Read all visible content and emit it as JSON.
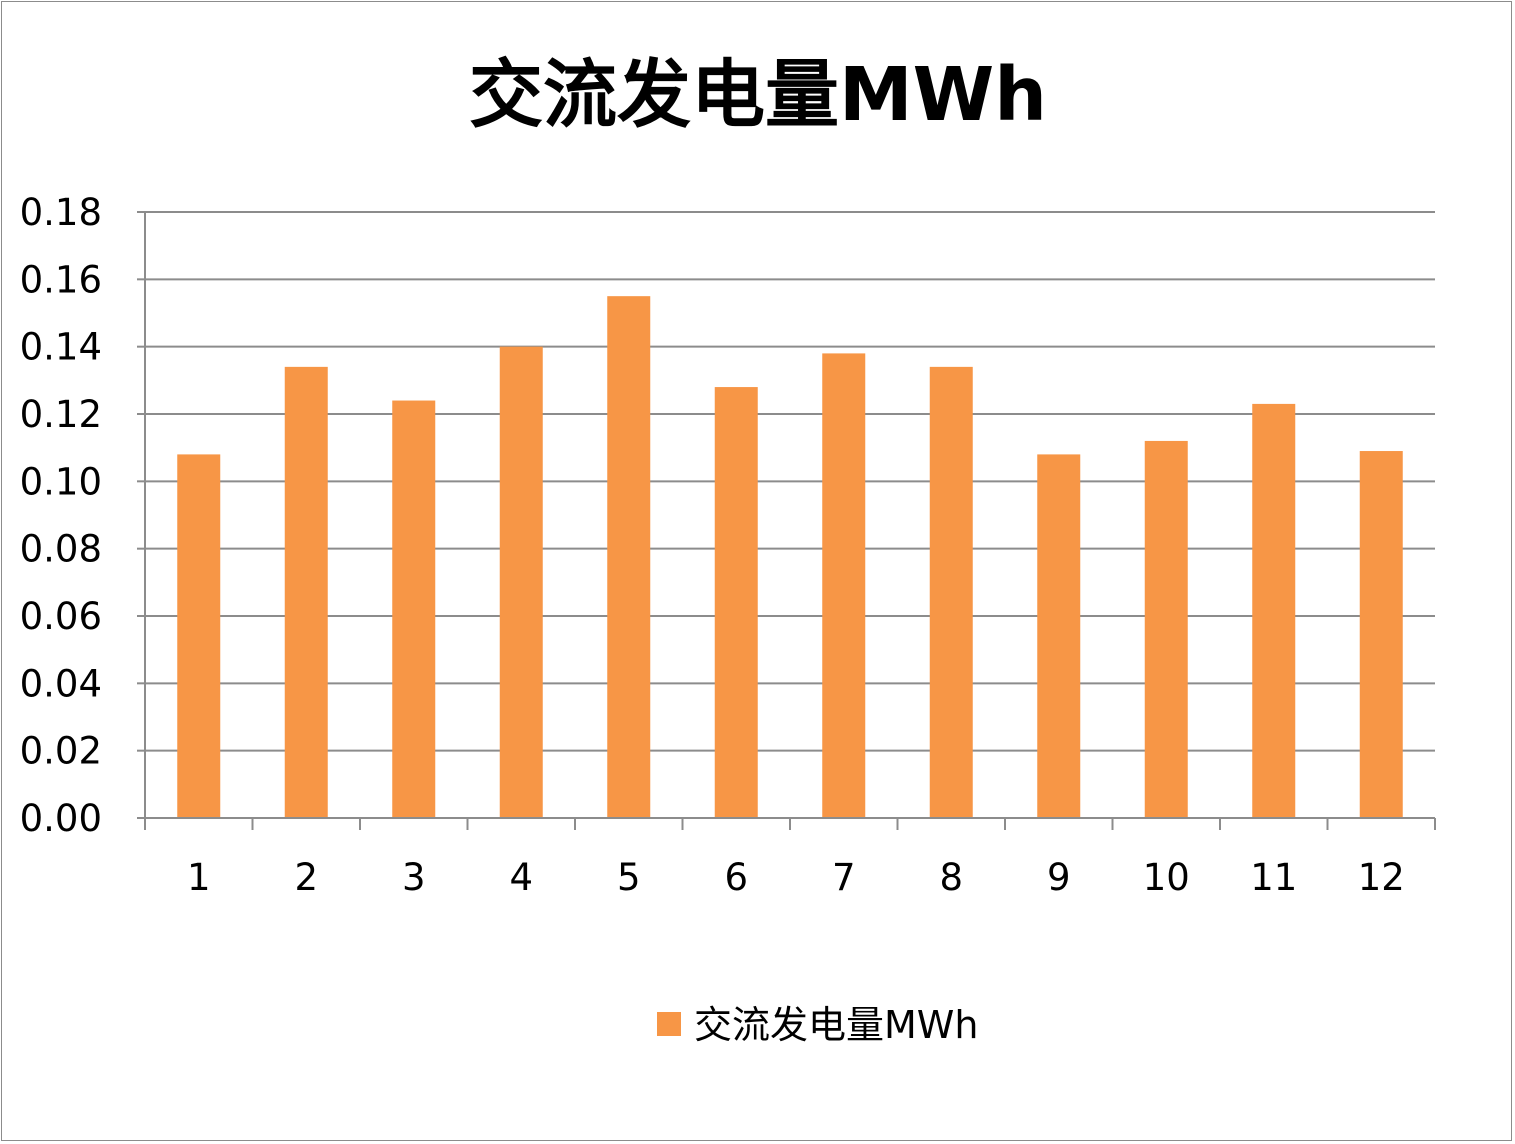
{
  "chart_data": {
    "type": "bar",
    "title": "交流发电量MWh",
    "xlabel": "",
    "ylabel": "",
    "categories": [
      "1",
      "2",
      "3",
      "4",
      "5",
      "6",
      "7",
      "8",
      "9",
      "10",
      "11",
      "12"
    ],
    "series": [
      {
        "name": "交流发电量MWh",
        "color": "#F79646",
        "values": [
          0.108,
          0.134,
          0.124,
          0.14,
          0.155,
          0.128,
          0.138,
          0.134,
          0.108,
          0.112,
          0.123,
          0.109
        ]
      }
    ],
    "ylim": [
      0,
      0.18
    ],
    "yticks": [
      "0.00",
      "0.02",
      "0.04",
      "0.06",
      "0.08",
      "0.10",
      "0.12",
      "0.14",
      "0.16",
      "0.18"
    ],
    "grid": true,
    "legend": "bottom"
  }
}
